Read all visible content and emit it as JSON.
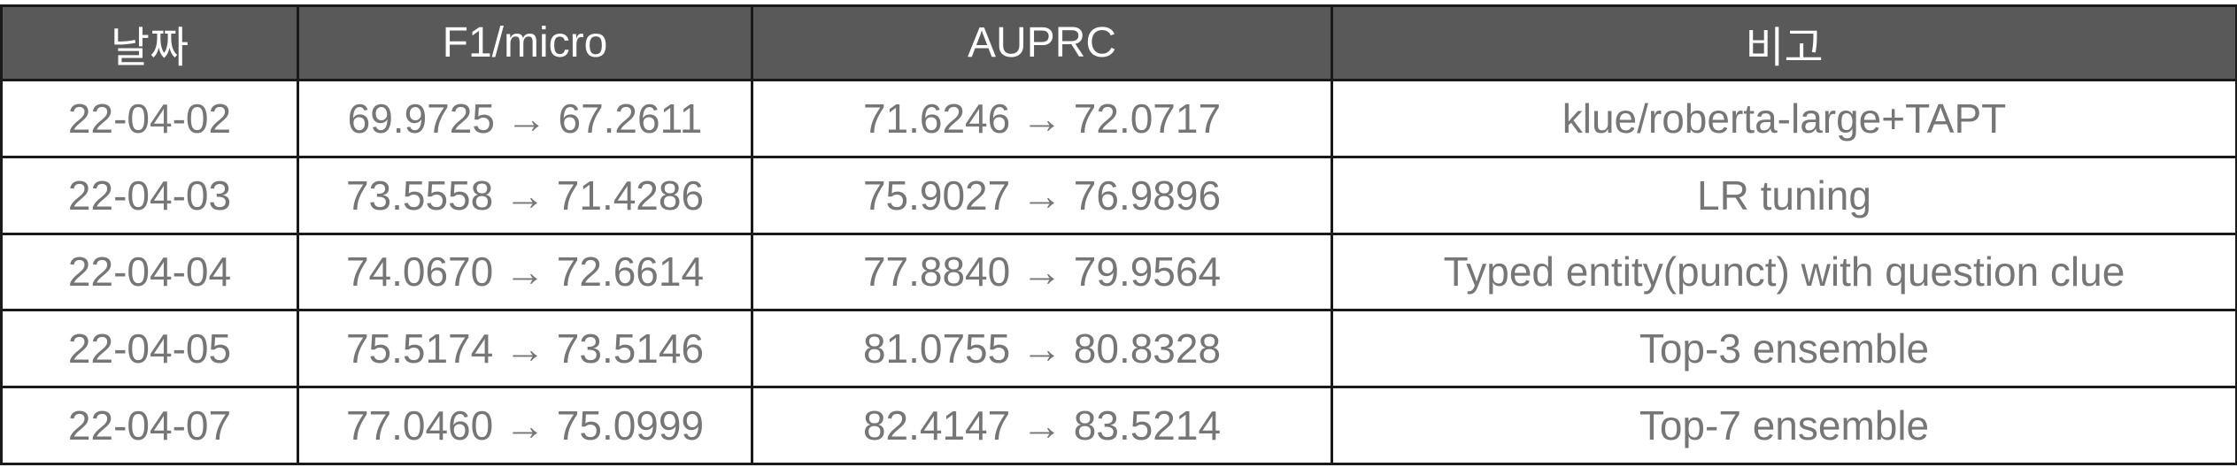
{
  "table": {
    "headers": [
      "날짜",
      "F1/micro",
      "AUPRC",
      "비고"
    ],
    "rows": [
      [
        "22-04-02",
        "69.9725 → 67.2611",
        "71.6246 → 72.0717",
        "klue/roberta-large+TAPT"
      ],
      [
        "22-04-03",
        "73.5558 → 71.4286",
        "75.9027 → 76.9896",
        "LR tuning"
      ],
      [
        "22-04-04",
        "74.0670 → 72.6614",
        "77.8840 → 79.9564",
        "Typed entity(punct) with question clue"
      ],
      [
        "22-04-05",
        "75.5174 → 73.5146",
        "81.0755 → 80.8328",
        "Top-3 ensemble"
      ],
      [
        "22-04-07",
        "77.0460 → 75.0999",
        "82.4147 → 83.5214",
        "Top-7 ensemble"
      ]
    ]
  },
  "colors": {
    "header_bg": "#595959",
    "header_text": "#ffffff",
    "cell_text": "#767676",
    "border": "#1a1a1a"
  }
}
